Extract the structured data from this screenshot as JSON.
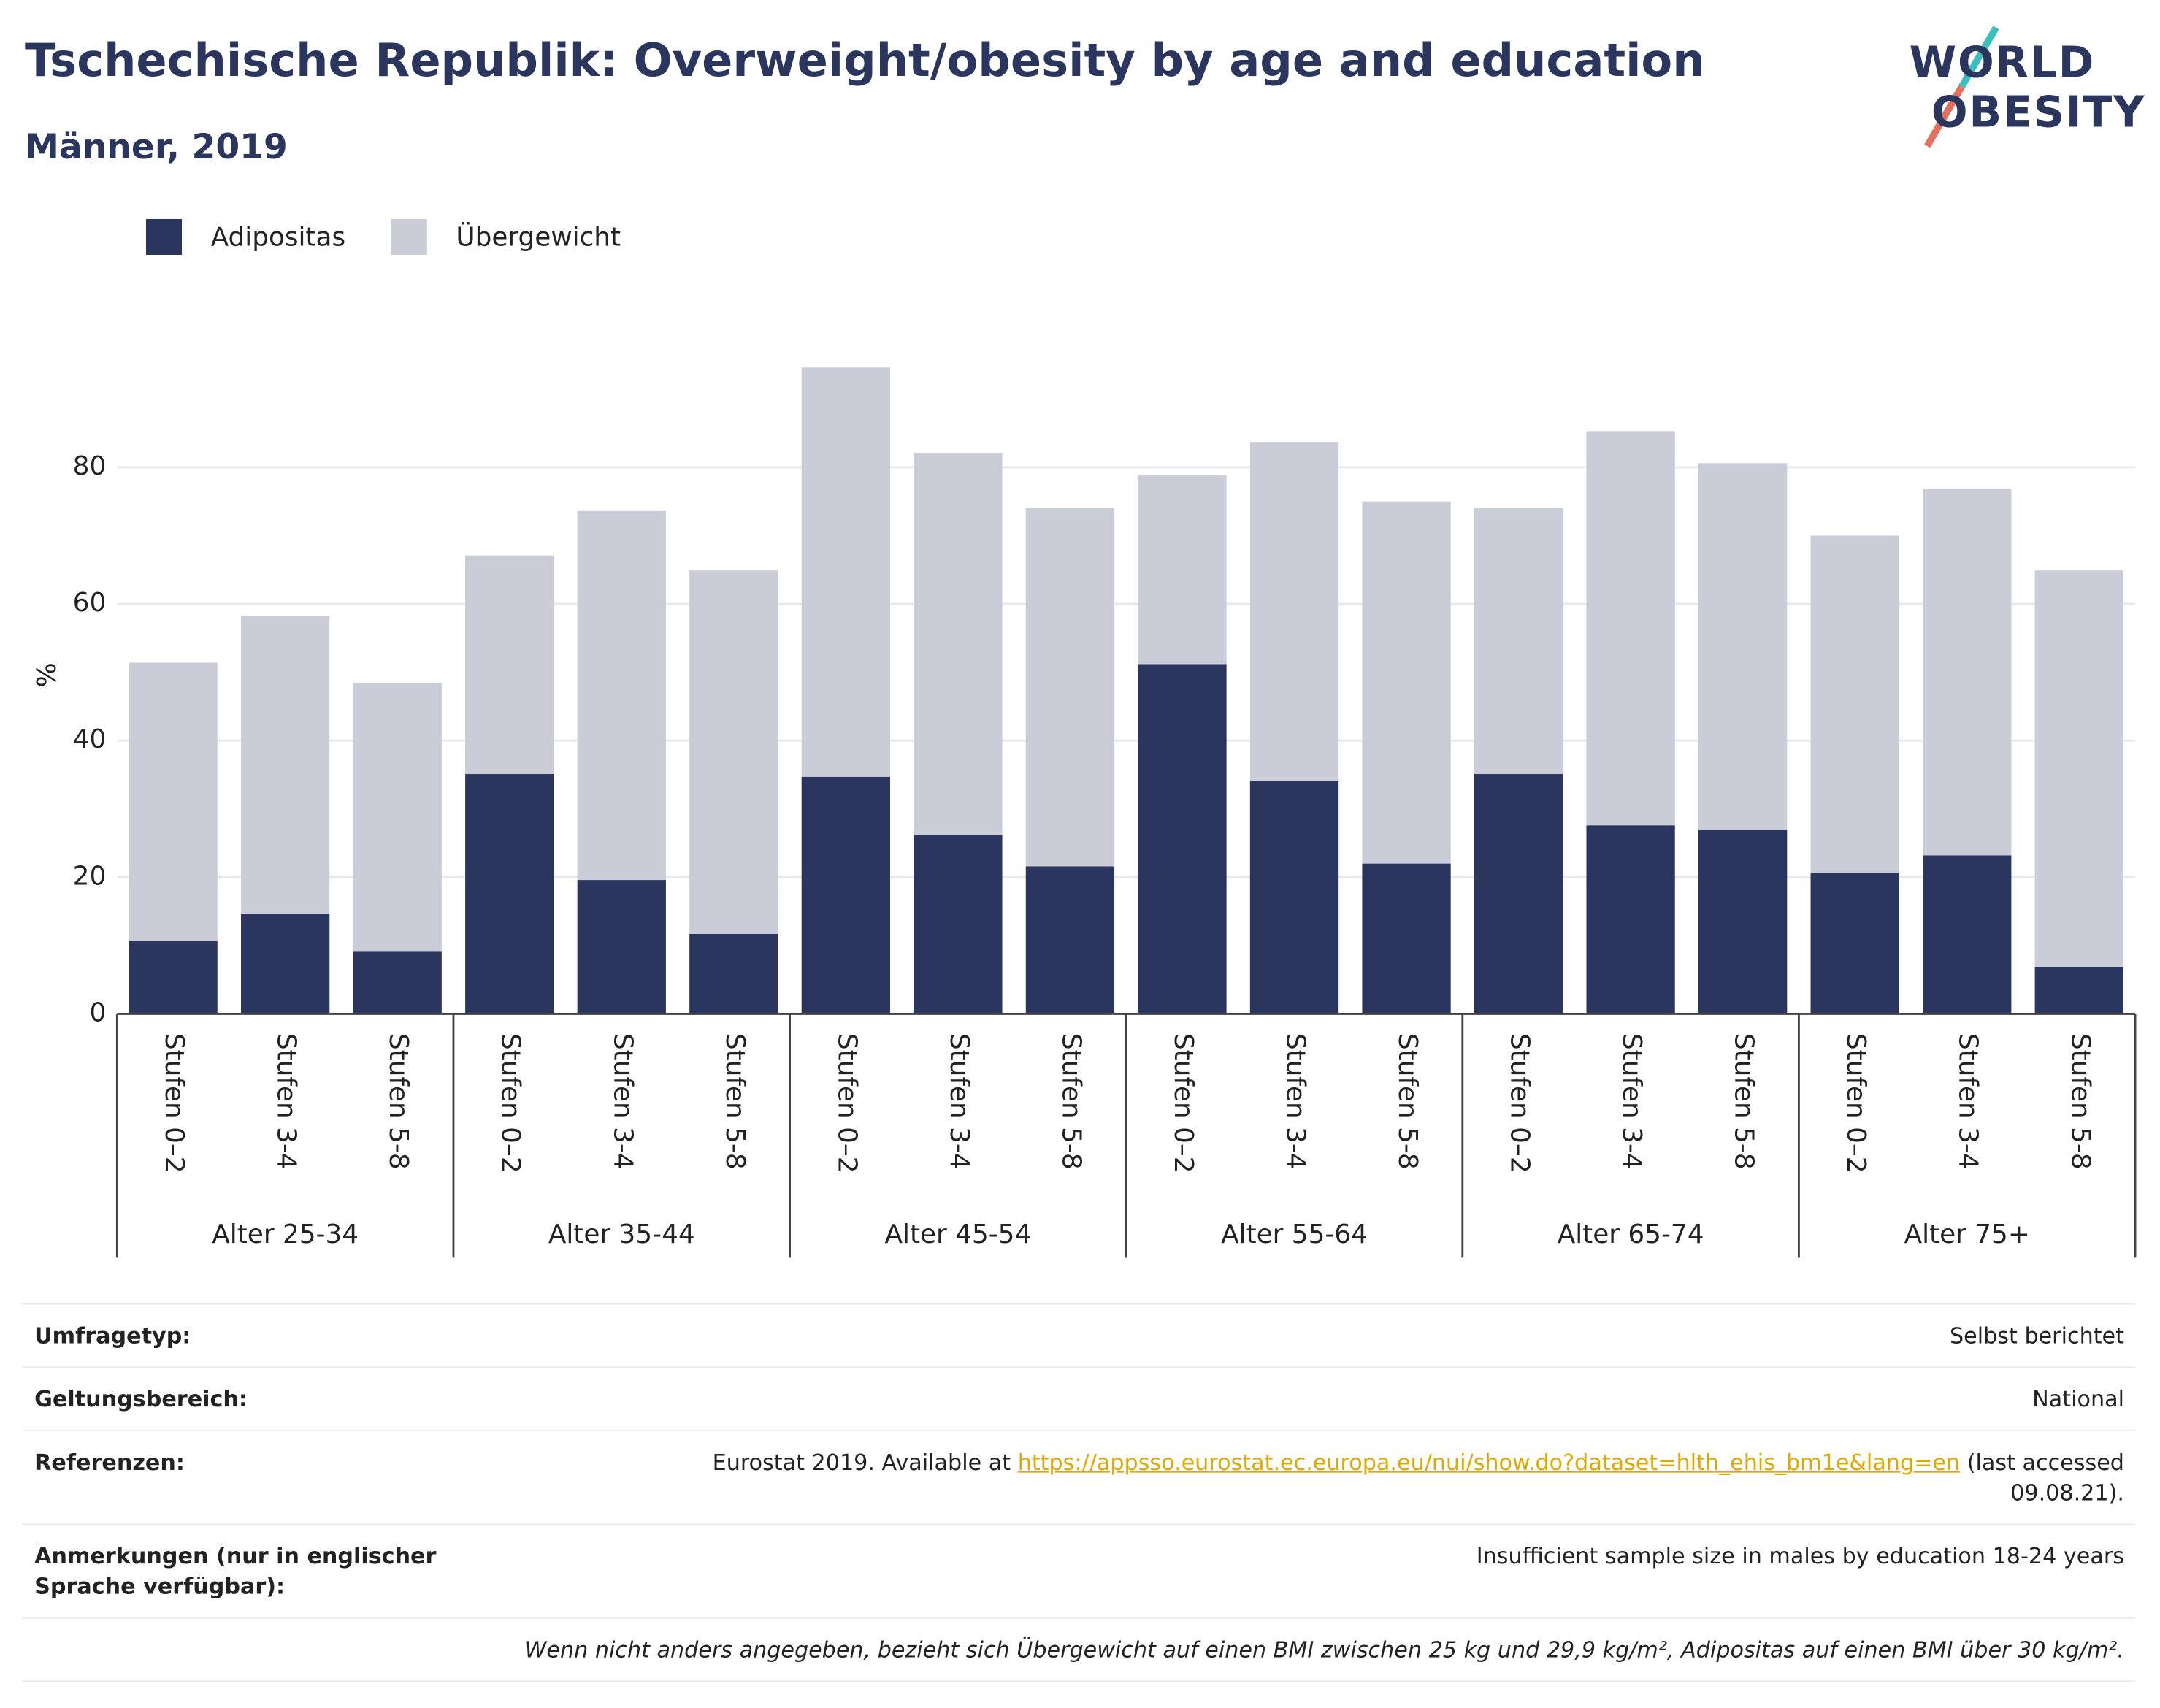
{
  "chart_data": {
    "type": "stacked-bar",
    "title": "Tschechische Republik: Overweight/obesity by age and education",
    "subtitle": "Männer, 2019",
    "ylabel": "%",
    "categories": [
      "Stufen 0–2",
      "Stufen 3-4",
      "Stufen 5-8",
      "Stufen 0–2",
      "Stufen 3-4",
      "Stufen 5-8",
      "Stufen 0–2",
      "Stufen 3-4",
      "Stufen 5-8",
      "Stufen 0–2",
      "Stufen 3-4",
      "Stufen 5-8",
      "Stufen 0–2",
      "Stufen 3-4",
      "Stufen 5-8",
      "Stufen 0–2",
      "Stufen 3-4",
      "Stufen 5-8"
    ],
    "groups": [
      "Alter 25-34",
      "Alter 35-44",
      "Alter 45-54",
      "Alter 55-64",
      "Alter 65-74",
      "Alter 75+"
    ],
    "series": [
      {
        "name": "Adipositas",
        "color": "#2b365f",
        "values": [
          10.7,
          14.7,
          9.1,
          35.1,
          19.6,
          11.7,
          34.7,
          26.2,
          21.6,
          51.2,
          34.1,
          22.0,
          35.1,
          27.6,
          27.0,
          20.6,
          23.2,
          6.9
        ]
      },
      {
        "name": "Übergewicht",
        "color": "#caccd8",
        "values": [
          40.7,
          43.6,
          39.3,
          32.0,
          54.0,
          53.2,
          59.9,
          55.9,
          52.4,
          27.6,
          49.6,
          53.0,
          38.9,
          57.7,
          53.6,
          49.4,
          53.6,
          58.0
        ]
      }
    ],
    "ylim": [
      0,
      100
    ],
    "yticks": [
      0,
      20,
      40,
      60,
      80
    ],
    "grid": true,
    "legend": "top-left"
  },
  "logo": [
    "WORLD",
    "OBESITY"
  ],
  "table": {
    "rows": [
      [
        "Umfragetyp:",
        "Selbst berichtet"
      ],
      [
        "Geltungsbereich:",
        "National"
      ],
      [
        "Referenzen:",
        "Eurostat 2019. Available at ",
        "https://appsso.eurostat.ec.europa.eu/nui/show.do?dataset=hlth_ehis_bm1e&lang=en",
        " (last accessed 09.08.21)."
      ],
      [
        "Anmerkungen (nur in englischer Sprache verfügbar):",
        "Insufficient sample size in males by education 18-24 years"
      ]
    ],
    "note": "Wenn nicht anders angegeben, bezieht sich Übergewicht auf einen BMI zwischen 25 kg und 29,9 kg/m², Adipositas auf einen BMI über 30 kg/m²."
  }
}
